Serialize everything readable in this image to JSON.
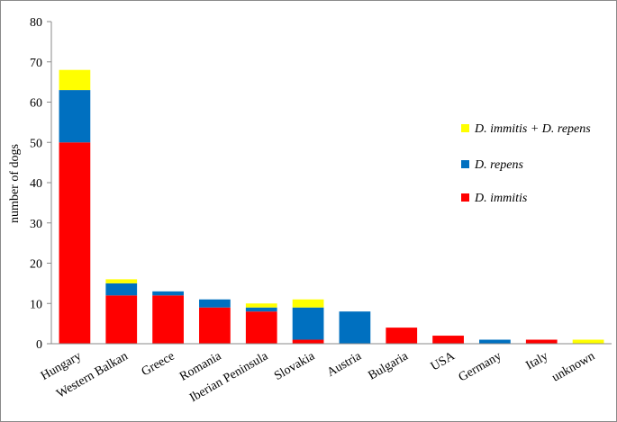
{
  "chart_data": {
    "type": "bar",
    "stacked": true,
    "ylabel": "number of dogs",
    "ylim": [
      0,
      80
    ],
    "yticks": [
      0,
      10,
      20,
      30,
      40,
      50,
      60,
      70,
      80
    ],
    "grid": false,
    "legend_position": "right",
    "categories": [
      "Hungary",
      "Western Balkan",
      "Greece",
      "Romania",
      "Iberian Peninsula",
      "Slovakia",
      "Austria",
      "Bulgaria",
      "USA",
      "Germany",
      "Italy",
      "unknown"
    ],
    "series": [
      {
        "name": "D. immitis",
        "color": "#ff0000",
        "values": [
          50,
          12,
          12,
          9,
          8,
          1,
          0,
          4,
          2,
          0,
          1,
          0
        ]
      },
      {
        "name": "D. repens",
        "color": "#0070c0",
        "values": [
          13,
          3,
          1,
          2,
          1,
          8,
          8,
          0,
          0,
          1,
          0,
          0
        ]
      },
      {
        "name": "D. immitis + D. repens",
        "color": "#ffff00",
        "values": [
          5,
          1,
          0,
          0,
          1,
          2,
          0,
          0,
          0,
          0,
          0,
          1
        ]
      }
    ],
    "legend_order": [
      "D. immitis + D. repens",
      "D. repens",
      "D. immitis"
    ]
  }
}
